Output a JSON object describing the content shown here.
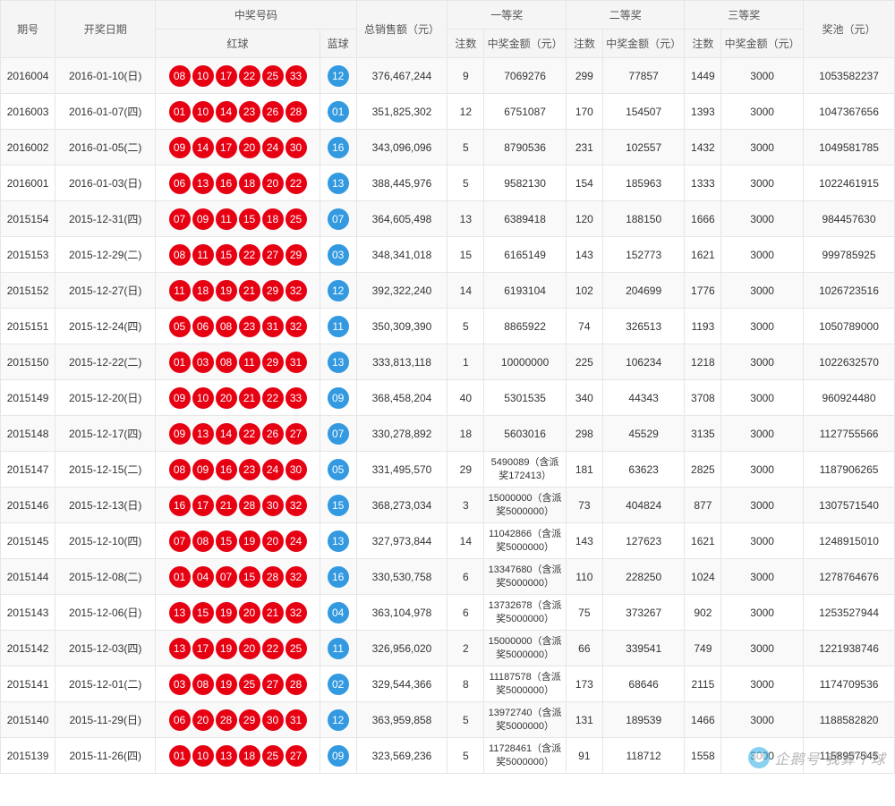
{
  "colors": {
    "redBall": "#e60012",
    "blueBall": "#3399e0",
    "border": "#e6e6e6",
    "headerBg": "#f5f5f5",
    "rowOdd": "#f9f9f9",
    "rowEven": "#ffffff"
  },
  "watermark": "企鹅号 我算个球",
  "headers": {
    "issue": "期号",
    "date": "开奖日期",
    "winningNumbers": "中奖号码",
    "redBalls": "红球",
    "blueBall": "蓝球",
    "totalSales": "总销售额（元）",
    "prize1": "一等奖",
    "prize2": "二等奖",
    "prize3": "三等奖",
    "count": "注数",
    "amount": "中奖金额（元）",
    "pool": "奖池（元）"
  },
  "colWidths": {
    "issue": 60,
    "date": 110,
    "red": 180,
    "blue": 40,
    "sales": 100,
    "count": 40,
    "amount": 90,
    "pool": 100
  },
  "rows": [
    {
      "issue": "2016004",
      "date": "2016-01-10(日)",
      "red": [
        "08",
        "10",
        "17",
        "22",
        "25",
        "33"
      ],
      "blue": "12",
      "sales": "376,467,244",
      "p1c": "9",
      "p1a": "7069276",
      "p2c": "299",
      "p2a": "77857",
      "p3c": "1449",
      "p3a": "3000",
      "pool": "1053582237"
    },
    {
      "issue": "2016003",
      "date": "2016-01-07(四)",
      "red": [
        "01",
        "10",
        "14",
        "23",
        "26",
        "28"
      ],
      "blue": "01",
      "sales": "351,825,302",
      "p1c": "12",
      "p1a": "6751087",
      "p2c": "170",
      "p2a": "154507",
      "p3c": "1393",
      "p3a": "3000",
      "pool": "1047367656"
    },
    {
      "issue": "2016002",
      "date": "2016-01-05(二)",
      "red": [
        "09",
        "14",
        "17",
        "20",
        "24",
        "30"
      ],
      "blue": "16",
      "sales": "343,096,096",
      "p1c": "5",
      "p1a": "8790536",
      "p2c": "231",
      "p2a": "102557",
      "p3c": "1432",
      "p3a": "3000",
      "pool": "1049581785"
    },
    {
      "issue": "2016001",
      "date": "2016-01-03(日)",
      "red": [
        "06",
        "13",
        "16",
        "18",
        "20",
        "22"
      ],
      "blue": "13",
      "sales": "388,445,976",
      "p1c": "5",
      "p1a": "9582130",
      "p2c": "154",
      "p2a": "185963",
      "p3c": "1333",
      "p3a": "3000",
      "pool": "1022461915"
    },
    {
      "issue": "2015154",
      "date": "2015-12-31(四)",
      "red": [
        "07",
        "09",
        "11",
        "15",
        "18",
        "25"
      ],
      "blue": "07",
      "sales": "364,605,498",
      "p1c": "13",
      "p1a": "6389418",
      "p2c": "120",
      "p2a": "188150",
      "p3c": "1666",
      "p3a": "3000",
      "pool": "984457630"
    },
    {
      "issue": "2015153",
      "date": "2015-12-29(二)",
      "red": [
        "08",
        "11",
        "15",
        "22",
        "27",
        "29"
      ],
      "blue": "03",
      "sales": "348,341,018",
      "p1c": "15",
      "p1a": "6165149",
      "p2c": "143",
      "p2a": "152773",
      "p3c": "1621",
      "p3a": "3000",
      "pool": "999785925"
    },
    {
      "issue": "2015152",
      "date": "2015-12-27(日)",
      "red": [
        "11",
        "18",
        "19",
        "21",
        "29",
        "32"
      ],
      "blue": "12",
      "sales": "392,322,240",
      "p1c": "14",
      "p1a": "6193104",
      "p2c": "102",
      "p2a": "204699",
      "p3c": "1776",
      "p3a": "3000",
      "pool": "1026723516"
    },
    {
      "issue": "2015151",
      "date": "2015-12-24(四)",
      "red": [
        "05",
        "06",
        "08",
        "23",
        "31",
        "32"
      ],
      "blue": "11",
      "sales": "350,309,390",
      "p1c": "5",
      "p1a": "8865922",
      "p2c": "74",
      "p2a": "326513",
      "p3c": "1193",
      "p3a": "3000",
      "pool": "1050789000"
    },
    {
      "issue": "2015150",
      "date": "2015-12-22(二)",
      "red": [
        "01",
        "03",
        "08",
        "11",
        "29",
        "31"
      ],
      "blue": "13",
      "sales": "333,813,118",
      "p1c": "1",
      "p1a": "10000000",
      "p2c": "225",
      "p2a": "106234",
      "p3c": "1218",
      "p3a": "3000",
      "pool": "1022632570"
    },
    {
      "issue": "2015149",
      "date": "2015-12-20(日)",
      "red": [
        "09",
        "10",
        "20",
        "21",
        "22",
        "33"
      ],
      "blue": "09",
      "sales": "368,458,204",
      "p1c": "40",
      "p1a": "5301535",
      "p2c": "340",
      "p2a": "44343",
      "p3c": "3708",
      "p3a": "3000",
      "pool": "960924480"
    },
    {
      "issue": "2015148",
      "date": "2015-12-17(四)",
      "red": [
        "09",
        "13",
        "14",
        "22",
        "26",
        "27"
      ],
      "blue": "07",
      "sales": "330,278,892",
      "p1c": "18",
      "p1a": "5603016",
      "p2c": "298",
      "p2a": "45529",
      "p3c": "3135",
      "p3a": "3000",
      "pool": "1127755566"
    },
    {
      "issue": "2015147",
      "date": "2015-12-15(二)",
      "red": [
        "08",
        "09",
        "16",
        "23",
        "24",
        "30"
      ],
      "blue": "05",
      "sales": "331,495,570",
      "p1c": "29",
      "p1a": "5490089（含派奖172413）",
      "p2c": "181",
      "p2a": "63623",
      "p3c": "2825",
      "p3a": "3000",
      "pool": "1187906265"
    },
    {
      "issue": "2015146",
      "date": "2015-12-13(日)",
      "red": [
        "16",
        "17",
        "21",
        "28",
        "30",
        "32"
      ],
      "blue": "15",
      "sales": "368,273,034",
      "p1c": "3",
      "p1a": "15000000（含派奖5000000）",
      "p2c": "73",
      "p2a": "404824",
      "p3c": "877",
      "p3a": "3000",
      "pool": "1307571540"
    },
    {
      "issue": "2015145",
      "date": "2015-12-10(四)",
      "red": [
        "07",
        "08",
        "15",
        "19",
        "20",
        "24"
      ],
      "blue": "13",
      "sales": "327,973,844",
      "p1c": "14",
      "p1a": "11042866（含派奖5000000）",
      "p2c": "143",
      "p2a": "127623",
      "p3c": "1621",
      "p3a": "3000",
      "pool": "1248915010"
    },
    {
      "issue": "2015144",
      "date": "2015-12-08(二)",
      "red": [
        "01",
        "04",
        "07",
        "15",
        "28",
        "32"
      ],
      "blue": "16",
      "sales": "330,530,758",
      "p1c": "6",
      "p1a": "13347680（含派奖5000000）",
      "p2c": "110",
      "p2a": "228250",
      "p3c": "1024",
      "p3a": "3000",
      "pool": "1278764676"
    },
    {
      "issue": "2015143",
      "date": "2015-12-06(日)",
      "red": [
        "13",
        "15",
        "19",
        "20",
        "21",
        "32"
      ],
      "blue": "04",
      "sales": "363,104,978",
      "p1c": "6",
      "p1a": "13732678（含派奖5000000）",
      "p2c": "75",
      "p2a": "373267",
      "p3c": "902",
      "p3a": "3000",
      "pool": "1253527944"
    },
    {
      "issue": "2015142",
      "date": "2015-12-03(四)",
      "red": [
        "13",
        "17",
        "19",
        "20",
        "22",
        "25"
      ],
      "blue": "11",
      "sales": "326,956,020",
      "p1c": "2",
      "p1a": "15000000（含派奖5000000）",
      "p2c": "66",
      "p2a": "339541",
      "p3c": "749",
      "p3a": "3000",
      "pool": "1221938746"
    },
    {
      "issue": "2015141",
      "date": "2015-12-01(二)",
      "red": [
        "03",
        "08",
        "19",
        "25",
        "27",
        "28"
      ],
      "blue": "02",
      "sales": "329,544,366",
      "p1c": "8",
      "p1a": "11187578（含派奖5000000）",
      "p2c": "173",
      "p2a": "68646",
      "p3c": "2115",
      "p3a": "3000",
      "pool": "1174709536"
    },
    {
      "issue": "2015140",
      "date": "2015-11-29(日)",
      "red": [
        "06",
        "20",
        "28",
        "29",
        "30",
        "31"
      ],
      "blue": "12",
      "sales": "363,959,858",
      "p1c": "5",
      "p1a": "13972740（含派奖5000000）",
      "p2c": "131",
      "p2a": "189539",
      "p3c": "1466",
      "p3a": "3000",
      "pool": "1188582820"
    },
    {
      "issue": "2015139",
      "date": "2015-11-26(四)",
      "red": [
        "01",
        "10",
        "13",
        "18",
        "25",
        "27"
      ],
      "blue": "09",
      "sales": "323,569,236",
      "p1c": "5",
      "p1a": "11728461（含派奖5000000）",
      "p2c": "91",
      "p2a": "118712",
      "p3c": "1558",
      "p3a": "3000",
      "pool": "1158957545"
    }
  ]
}
